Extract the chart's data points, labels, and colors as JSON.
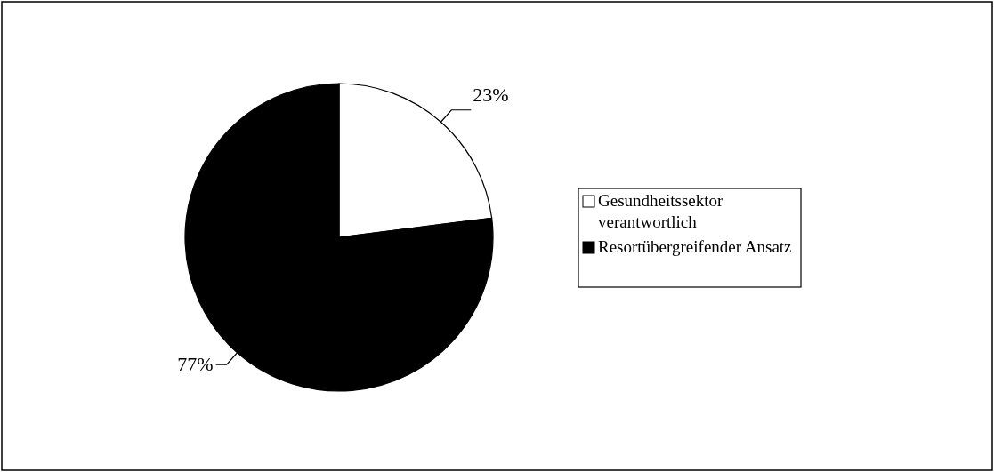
{
  "chart_data": {
    "type": "pie",
    "categories": [
      "Gesundheitssektor verantwortlich",
      "Resortübergreifender Ansatz"
    ],
    "values": [
      23,
      77
    ],
    "colors": [
      "#ffffff",
      "#000000"
    ],
    "value_labels": [
      "23%",
      "77%"
    ],
    "legend": "right"
  }
}
